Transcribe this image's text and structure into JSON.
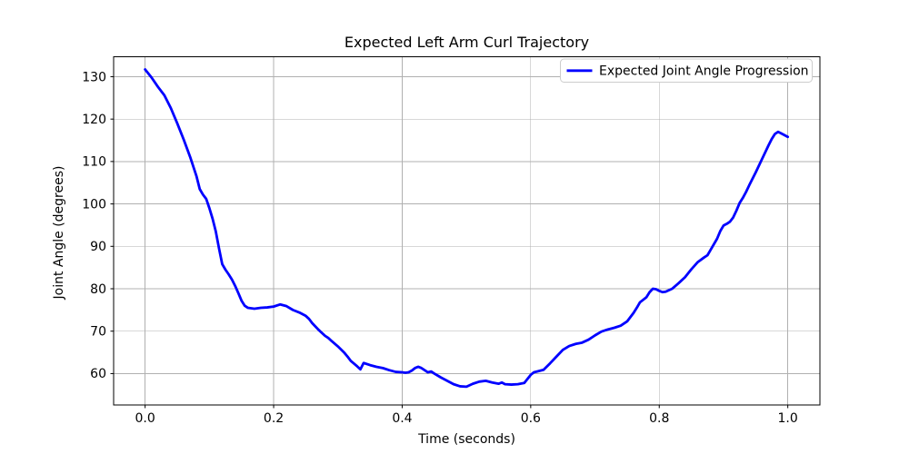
{
  "chart_data": {
    "type": "line",
    "title": "Expected Left Arm Curl Trajectory",
    "xlabel": "Time (seconds)",
    "ylabel": "Joint Angle (degrees)",
    "grid": true,
    "legend_position": "upper right",
    "line_color": "#0000ff",
    "line_width": 2.8,
    "grid_color": "#b0b0b0",
    "spine_color": "#000000",
    "legend_edge_color": "#cccccc",
    "xlim": [
      -0.049,
      1.05
    ],
    "ylim": [
      52.6,
      134.7
    ],
    "xticks": [
      0.0,
      0.2,
      0.4,
      0.6,
      0.8,
      1.0
    ],
    "xtick_labels": [
      "0.0",
      "0.2",
      "0.4",
      "0.6",
      "0.8",
      "1.0"
    ],
    "yticks": [
      60,
      70,
      80,
      90,
      100,
      110,
      120,
      130
    ],
    "ytick_labels": [
      "60",
      "70",
      "80",
      "90",
      "100",
      "110",
      "120",
      "130"
    ],
    "legend": {
      "entries": [
        {
          "label": "Expected Joint Angle Progression",
          "color": "#0000ff"
        }
      ]
    },
    "series": [
      {
        "name": "Expected Joint Angle Progression",
        "x": [
          0.0,
          0.01,
          0.02,
          0.03,
          0.04,
          0.05,
          0.06,
          0.07,
          0.08,
          0.085,
          0.09,
          0.095,
          0.1,
          0.105,
          0.11,
          0.115,
          0.12,
          0.125,
          0.13,
          0.135,
          0.14,
          0.145,
          0.15,
          0.155,
          0.16,
          0.17,
          0.18,
          0.19,
          0.2,
          0.21,
          0.22,
          0.23,
          0.24,
          0.25,
          0.255,
          0.26,
          0.27,
          0.28,
          0.285,
          0.29,
          0.3,
          0.31,
          0.315,
          0.32,
          0.33,
          0.335,
          0.34,
          0.35,
          0.36,
          0.37,
          0.38,
          0.39,
          0.4,
          0.405,
          0.41,
          0.415,
          0.42,
          0.425,
          0.43,
          0.44,
          0.445,
          0.45,
          0.46,
          0.47,
          0.48,
          0.49,
          0.5,
          0.51,
          0.52,
          0.53,
          0.54,
          0.55,
          0.555,
          0.56,
          0.57,
          0.58,
          0.59,
          0.6,
          0.605,
          0.61,
          0.62,
          0.63,
          0.64,
          0.65,
          0.66,
          0.67,
          0.68,
          0.69,
          0.7,
          0.71,
          0.72,
          0.73,
          0.74,
          0.75,
          0.76,
          0.765,
          0.77,
          0.775,
          0.78,
          0.785,
          0.79,
          0.795,
          0.8,
          0.805,
          0.81,
          0.82,
          0.83,
          0.84,
          0.85,
          0.86,
          0.87,
          0.875,
          0.88,
          0.89,
          0.895,
          0.9,
          0.905,
          0.91,
          0.915,
          0.92,
          0.925,
          0.93,
          0.935,
          0.94,
          0.95,
          0.96,
          0.97,
          0.975,
          0.98,
          0.985,
          0.99,
          1.0
        ],
        "y": [
          131.7,
          129.8,
          127.6,
          125.6,
          122.6,
          119.0,
          115.2,
          111.1,
          106.5,
          103.5,
          102.2,
          101.2,
          99.0,
          96.5,
          93.5,
          89.5,
          85.8,
          84.5,
          83.4,
          82.2,
          80.7,
          79.0,
          77.2,
          76.0,
          75.5,
          75.3,
          75.5,
          75.6,
          75.8,
          76.3,
          75.9,
          75.0,
          74.4,
          73.6,
          72.9,
          71.9,
          70.3,
          68.9,
          68.4,
          67.7,
          66.4,
          64.9,
          64.0,
          63.0,
          61.7,
          61.0,
          62.5,
          62.0,
          61.6,
          61.3,
          60.8,
          60.4,
          60.3,
          60.2,
          60.3,
          60.7,
          61.3,
          61.6,
          61.3,
          60.3,
          60.5,
          60.0,
          59.1,
          58.3,
          57.5,
          57.0,
          56.9,
          57.6,
          58.1,
          58.3,
          57.9,
          57.6,
          57.9,
          57.5,
          57.4,
          57.5,
          57.8,
          59.7,
          60.3,
          60.5,
          60.9,
          62.4,
          64.0,
          65.6,
          66.5,
          67.0,
          67.3,
          68.0,
          69.0,
          69.9,
          70.4,
          70.8,
          71.3,
          72.3,
          74.3,
          75.5,
          76.8,
          77.4,
          78.0,
          79.2,
          80.0,
          79.9,
          79.5,
          79.2,
          79.3,
          80.0,
          81.3,
          82.7,
          84.6,
          86.3,
          87.4,
          87.9,
          89.2,
          91.8,
          93.6,
          94.9,
          95.3,
          95.8,
          96.8,
          98.4,
          100.2,
          101.4,
          102.8,
          104.4,
          107.4,
          110.6,
          113.8,
          115.3,
          116.5,
          117.0,
          116.6,
          115.8
        ]
      }
    ]
  }
}
